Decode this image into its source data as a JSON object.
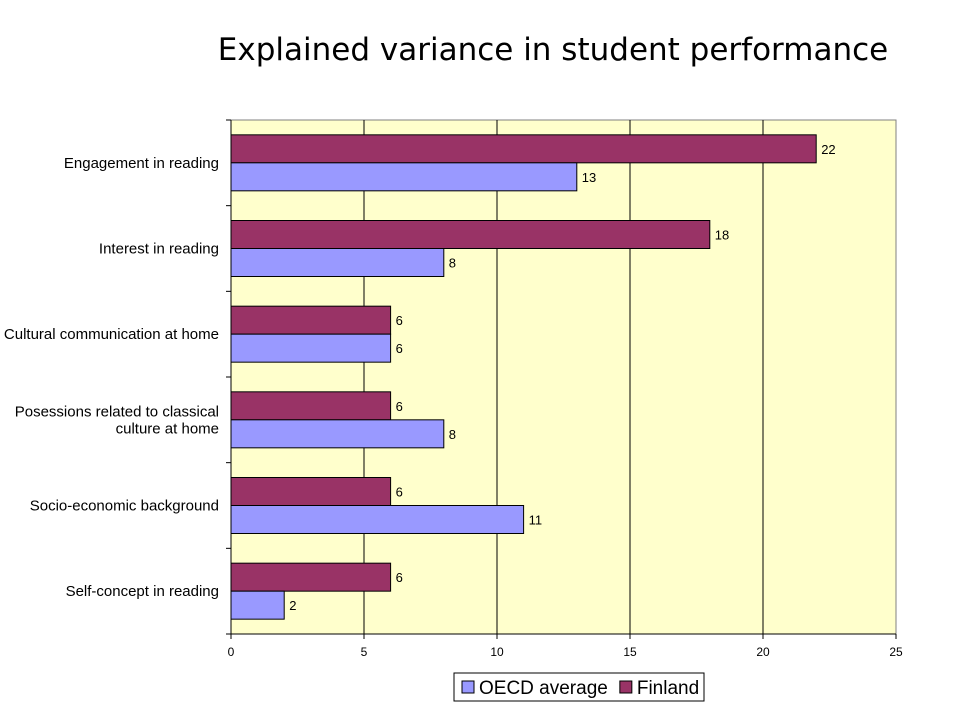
{
  "chart_data": {
    "type": "bar",
    "orientation": "horizontal",
    "title": "Explained variance in student performance",
    "categories": [
      "Engagement in reading",
      "Interest in reading",
      "Cultural communication at home",
      "Posessions related to classical culture at home",
      "Socio-economic background",
      "Self-concept in reading"
    ],
    "category_lines": [
      [
        "Engagement in reading"
      ],
      [
        "Interest in reading"
      ],
      [
        "Cultural communication at home"
      ],
      [
        "Posessions related to classical",
        "culture at home"
      ],
      [
        "Socio-economic background"
      ],
      [
        "Self-concept in reading"
      ]
    ],
    "series": [
      {
        "name": "Finland",
        "color": "#993366",
        "values": [
          22,
          18,
          6,
          6,
          6,
          6
        ]
      },
      {
        "name": "OECD average",
        "color": "#9999ff",
        "values": [
          13,
          8,
          6,
          8,
          11,
          2
        ]
      }
    ],
    "legend_order": [
      "OECD average",
      "Finland"
    ],
    "xlim": [
      0,
      25
    ],
    "xticks": [
      0,
      5,
      10,
      15,
      20,
      25
    ],
    "grid": true,
    "plot_background": "#ffffcc",
    "legend_position": "bottom",
    "data_labels": true
  }
}
